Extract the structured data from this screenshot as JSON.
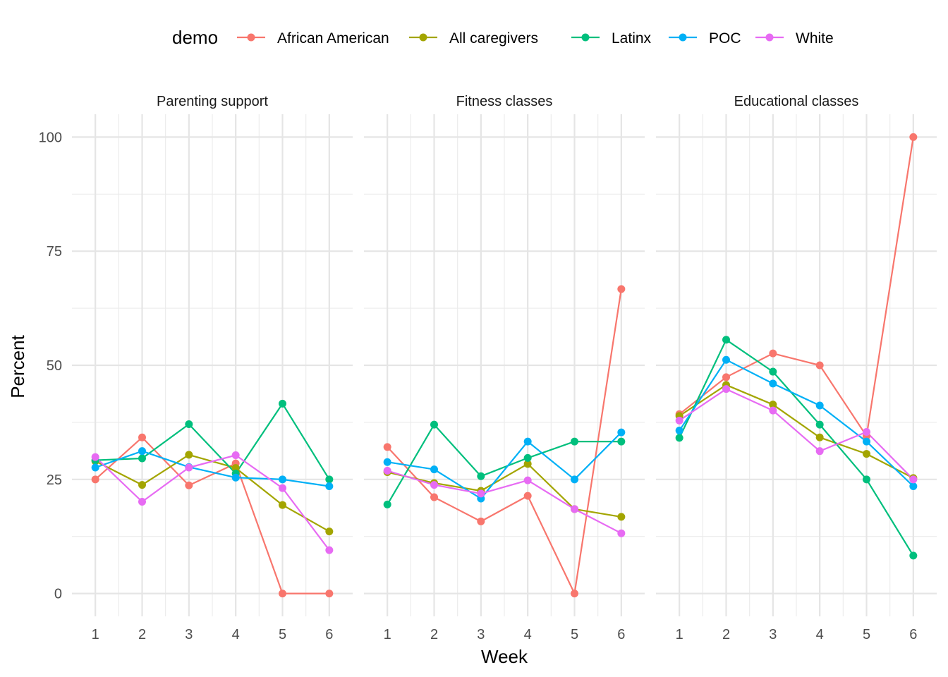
{
  "chart_data": {
    "type": "line",
    "xlabel": "Week",
    "ylabel": "Percent",
    "legend": {
      "title": "demo",
      "position": "top"
    },
    "x": [
      1,
      2,
      3,
      4,
      5,
      6
    ],
    "xticks": [
      "1",
      "2",
      "3",
      "4",
      "5",
      "6"
    ],
    "ylim": [
      -5,
      105
    ],
    "yticks": [
      "0",
      "25",
      "50",
      "75",
      "100"
    ],
    "grid": true,
    "colors": {
      "African American": "#F8766D",
      "All caregivers": "#A3A500",
      "Latinx": "#00BF7D",
      "POC": "#00B0F6",
      "White": "#E76BF3"
    },
    "series_names": [
      "African American",
      "All caregivers",
      "Latinx",
      "POC",
      "White"
    ],
    "panels": [
      {
        "title": "Parenting support",
        "series": [
          {
            "name": "African American",
            "values": [
              25.0,
              34.2,
              23.7,
              28.5,
              0.0,
              0.0
            ]
          },
          {
            "name": "All caregivers",
            "values": [
              29.0,
              23.8,
              30.4,
              27.5,
              19.4,
              13.6
            ]
          },
          {
            "name": "Latinx",
            "values": [
              29.2,
              29.6,
              37.1,
              26.3,
              41.6,
              25.0
            ]
          },
          {
            "name": "POC",
            "values": [
              27.6,
              31.2,
              27.7,
              25.4,
              25.0,
              23.5
            ]
          },
          {
            "name": "White",
            "values": [
              29.9,
              20.1,
              27.6,
              30.3,
              23.1,
              9.5
            ]
          }
        ]
      },
      {
        "title": "Fitness classes",
        "series": [
          {
            "name": "African American",
            "values": [
              32.1,
              21.1,
              15.8,
              21.4,
              0.0,
              66.7
            ]
          },
          {
            "name": "All caregivers",
            "values": [
              26.6,
              24.2,
              22.5,
              28.4,
              18.5,
              16.8
            ]
          },
          {
            "name": "Latinx",
            "values": [
              19.5,
              37.0,
              25.7,
              29.7,
              33.3,
              33.3
            ]
          },
          {
            "name": "POC",
            "values": [
              28.8,
              27.2,
              20.8,
              33.3,
              25.0,
              35.3
            ]
          },
          {
            "name": "White",
            "values": [
              26.9,
              23.8,
              21.9,
              24.8,
              18.5,
              13.2
            ]
          }
        ]
      },
      {
        "title": "Educational classes",
        "series": [
          {
            "name": "African American",
            "values": [
              39.3,
              47.4,
              52.6,
              50.0,
              34.5,
              100.0
            ]
          },
          {
            "name": "All caregivers",
            "values": [
              38.9,
              45.7,
              41.4,
              34.2,
              30.6,
              25.3
            ]
          },
          {
            "name": "Latinx",
            "values": [
              34.1,
              55.6,
              48.6,
              37.0,
              25.0,
              8.3
            ]
          },
          {
            "name": "POC",
            "values": [
              35.7,
              51.2,
              46.0,
              41.2,
              33.3,
              23.5
            ]
          },
          {
            "name": "White",
            "values": [
              37.9,
              44.8,
              40.1,
              31.2,
              35.4,
              25.0
            ]
          }
        ]
      }
    ]
  }
}
